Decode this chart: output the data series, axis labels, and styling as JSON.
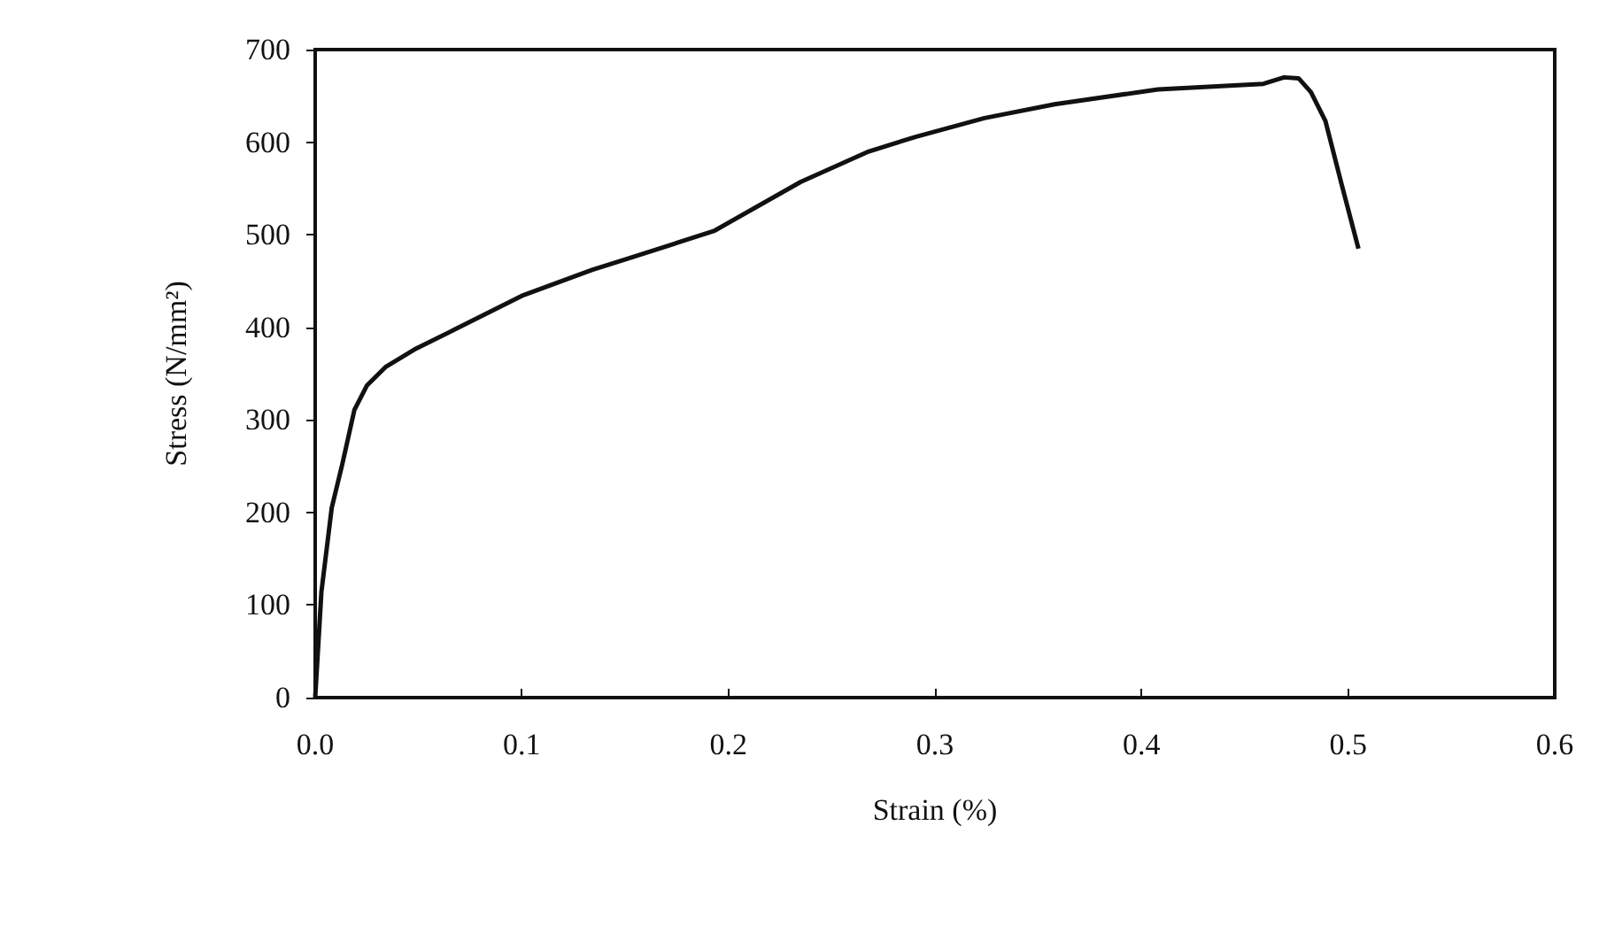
{
  "chart_data": {
    "type": "line",
    "xlabel": "Strain (%)",
    "ylabel": "Stress (N/mm²)",
    "xlim": [
      0,
      0.6
    ],
    "xticks": [
      {
        "value": 0,
        "label": "0.0"
      },
      {
        "value": 0.1,
        "label": "0.1"
      },
      {
        "value": 0.2,
        "label": "0.2"
      },
      {
        "value": 0.3,
        "label": "0.3"
      },
      {
        "value": 0.4,
        "label": "0.4"
      },
      {
        "value": 0.5,
        "label": "0.5"
      },
      {
        "value": 0.6,
        "label": "0.6"
      }
    ],
    "ylim": [
      0,
      700
    ],
    "yticks": [
      0,
      100,
      200,
      300,
      400,
      500,
      600,
      700
    ],
    "grid": false,
    "marker": "none",
    "line_style": "solid",
    "series": [
      {
        "color": "#111111",
        "x": [
          0,
          0.003,
          0.008,
          0.013,
          0.019,
          0.025,
          0.034,
          0.048,
          0.067,
          0.1,
          0.134,
          0.151,
          0.193,
          0.235,
          0.268,
          0.291,
          0.324,
          0.358,
          0.408,
          0.459,
          0.469,
          0.476,
          0.482,
          0.489,
          0.497,
          0.505
        ],
        "values": [
          0,
          114,
          205,
          251,
          311,
          337,
          357,
          376,
          397,
          434,
          462,
          474,
          504,
          557,
          590,
          606,
          626,
          641,
          657,
          663,
          670,
          669,
          654,
          623,
          553,
          485
        ]
      }
    ]
  }
}
